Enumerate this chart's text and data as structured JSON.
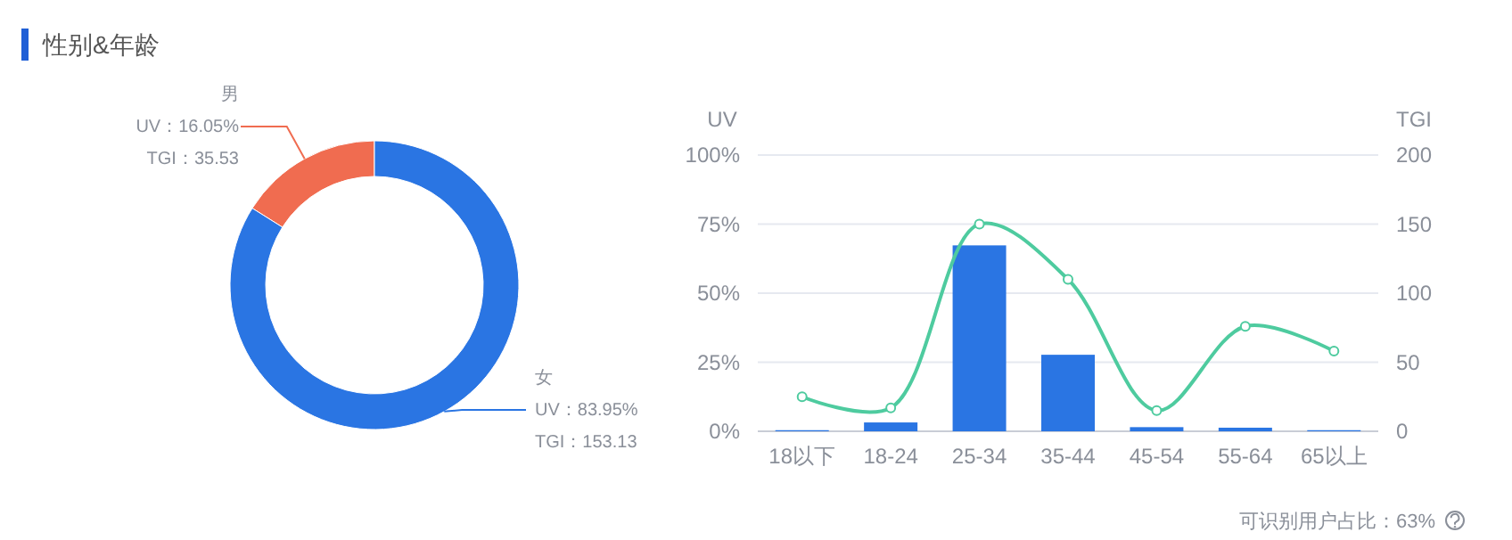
{
  "chart_data": [
    {
      "type": "donut",
      "title": "性别&年龄",
      "categories": [
        "男",
        "女"
      ],
      "values": [
        16.05,
        83.95
      ],
      "colors": [
        "#f06c50",
        "#2a75e3"
      ],
      "value_labels": [
        "UV：16.05%",
        "UV：83.95%"
      ],
      "annotations": [
        "TGI：35.53",
        "TGI：153.13"
      ]
    },
    {
      "type": "bar",
      "categories": [
        "18以下",
        "18-24",
        "25-34",
        "35-44",
        "45-54",
        "55-64",
        "65以上"
      ],
      "ylabel": "UV",
      "y2label": "TGI",
      "ylim": [
        0,
        100
      ],
      "yticks": [
        {
          "value": 0,
          "label": "0%"
        },
        {
          "value": 25,
          "label": "25%"
        },
        {
          "value": 50,
          "label": "50%"
        },
        {
          "value": 75,
          "label": "75%"
        },
        {
          "value": 100,
          "label": "100%"
        }
      ],
      "y2lim": [
        0,
        200
      ],
      "y2ticks": [
        0,
        50,
        100,
        150,
        200
      ],
      "grid": "y",
      "series": [
        {
          "type": "bar",
          "color": "#2a75e3",
          "values": [
            0.4,
            3.2,
            67.3,
            27.7,
            1.5,
            1.3,
            0.4
          ]
        },
        {
          "type": "line",
          "axis": "y2",
          "color": "#4ecb9f",
          "marker": "circle",
          "line_style": "solid",
          "values": [
            25,
            17,
            150,
            110,
            15,
            76,
            58
          ]
        }
      ],
      "annotations": [
        "可识别用户占比：63%"
      ]
    }
  ]
}
